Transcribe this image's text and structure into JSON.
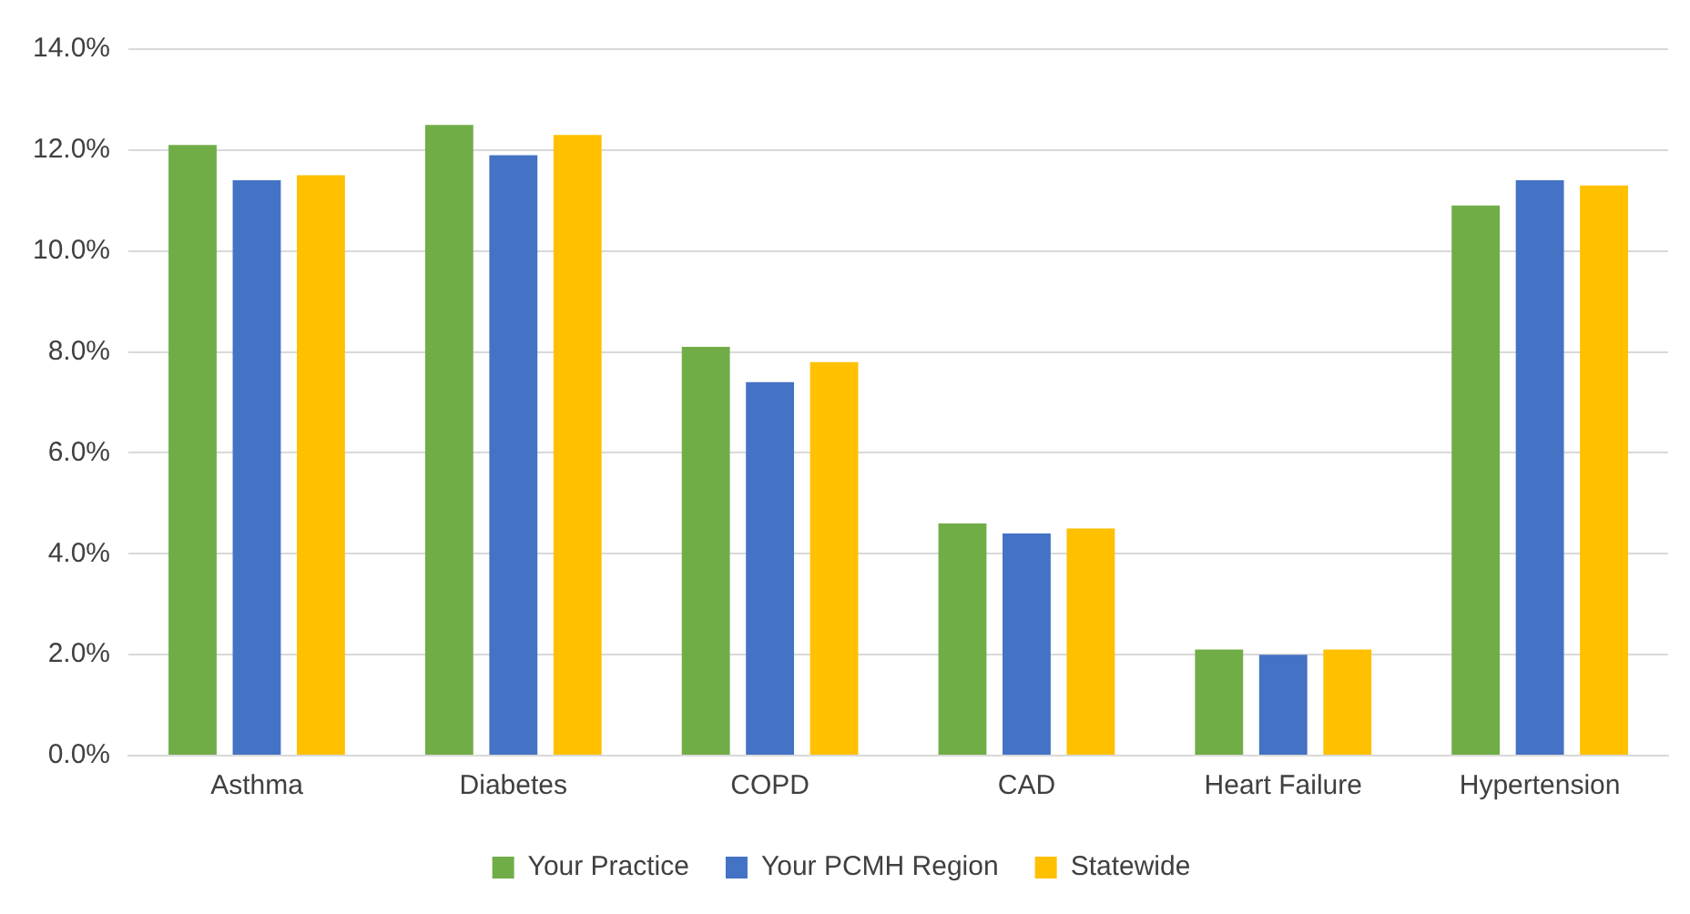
{
  "chart_data": {
    "type": "bar",
    "categories": [
      "Asthma",
      "Diabetes",
      "COPD",
      "CAD",
      "Heart Failure",
      "Hypertension"
    ],
    "series": [
      {
        "name": "Your Practice",
        "color": "#70ad47",
        "values": [
          12.1,
          12.5,
          8.1,
          4.6,
          2.1,
          10.9
        ]
      },
      {
        "name": "Your PCMH Region",
        "color": "#4472c4",
        "values": [
          11.4,
          11.9,
          7.4,
          4.4,
          2.0,
          11.4
        ]
      },
      {
        "name": "Statewide",
        "color": "#ffc000",
        "values": [
          11.5,
          12.3,
          7.8,
          4.5,
          2.1,
          11.3
        ]
      }
    ],
    "ylim": [
      0,
      14
    ],
    "yticks": [
      {
        "value": 0,
        "label": "0.0%"
      },
      {
        "value": 2,
        "label": "2.0%"
      },
      {
        "value": 4,
        "label": "4.0%"
      },
      {
        "value": 6,
        "label": "6.0%"
      },
      {
        "value": 8,
        "label": "8.0%"
      },
      {
        "value": 10,
        "label": "10.0%"
      },
      {
        "value": 12,
        "label": "12.0%"
      },
      {
        "value": 14,
        "label": "14.0%"
      }
    ],
    "grid": "y",
    "legend": "bottom"
  }
}
